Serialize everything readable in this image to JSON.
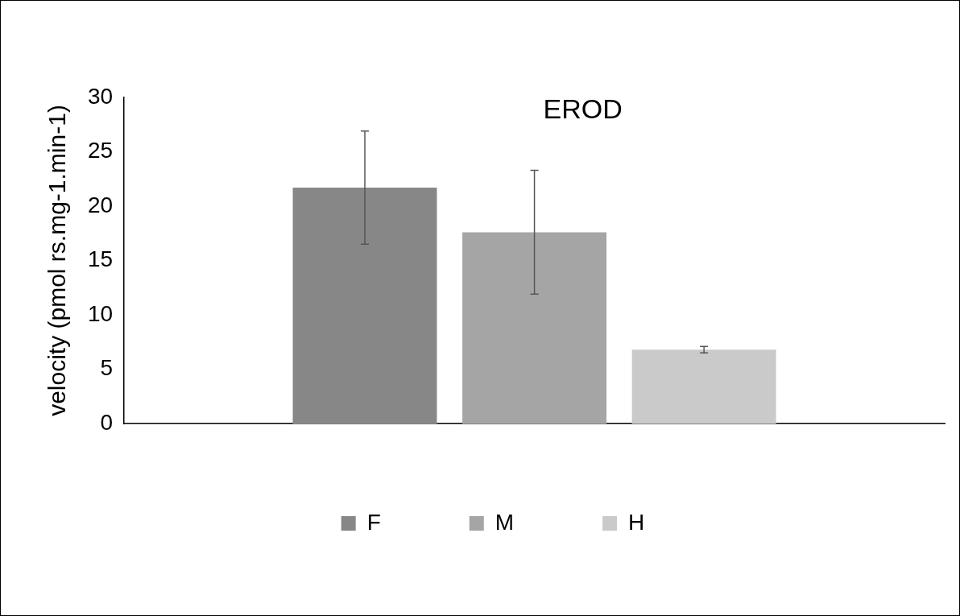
{
  "chart_data": {
    "type": "bar",
    "title": "EROD",
    "ylabel": "velocity (pmol rs.mg-1.min-1)",
    "categories": [
      null
    ],
    "series": [
      {
        "name": "F",
        "color": "#878787",
        "values": [
          21.7
        ],
        "errors": [
          5.2
        ]
      },
      {
        "name": "M",
        "color": "#a5a5a5",
        "values": [
          17.6
        ],
        "errors": [
          5.7
        ]
      },
      {
        "name": "H",
        "color": "#cacaca",
        "values": [
          6.8
        ],
        "errors": [
          0.3
        ]
      }
    ],
    "ylim": [
      0,
      30
    ],
    "yticks": [
      0,
      5,
      10,
      15,
      20,
      25,
      30
    ],
    "grid": false,
    "legend": "bottom"
  }
}
